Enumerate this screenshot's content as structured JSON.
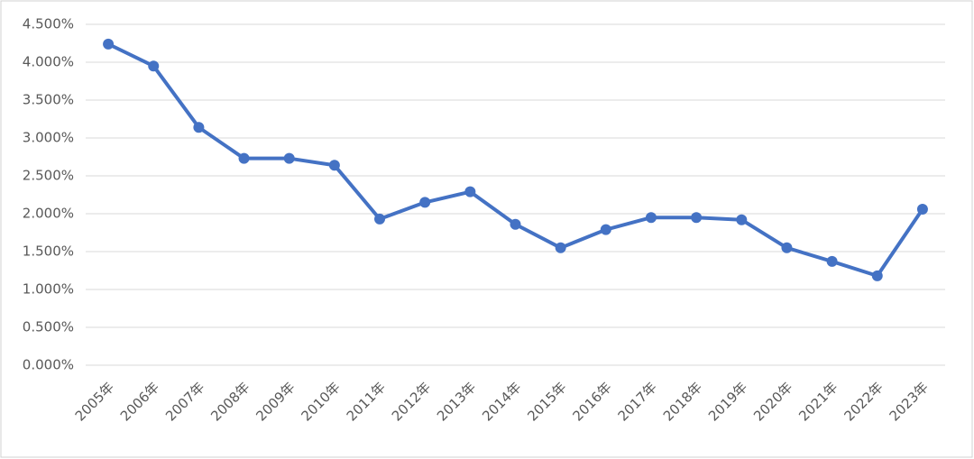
{
  "chart_data": {
    "type": "line",
    "categories": [
      "2005年",
      "2006年",
      "2007年",
      "2008年",
      "2009年",
      "2010年",
      "2011年",
      "2012年",
      "2013年",
      "2014年",
      "2015年",
      "2016年",
      "2017年",
      "2018年",
      "2019年",
      "2020年",
      "2021年",
      "2022年",
      "2023年"
    ],
    "series": [
      {
        "color": "#4472c4",
        "values": [
          4.24,
          3.95,
          3.14,
          2.73,
          2.73,
          2.64,
          1.93,
          2.15,
          2.29,
          1.86,
          1.55,
          1.79,
          1.95,
          1.95,
          1.92,
          1.55,
          1.37,
          1.18,
          2.06
        ]
      }
    ],
    "ylim": [
      0,
      4.5
    ],
    "yticks": [
      {
        "value": 0,
        "label": "0.000%"
      },
      {
        "value": 0.5,
        "label": "0.500%"
      },
      {
        "value": 1,
        "label": "1.000%"
      },
      {
        "value": 1.5,
        "label": "1.500%"
      },
      {
        "value": 2,
        "label": "2.000%"
      },
      {
        "value": 2.5,
        "label": "2.500%"
      },
      {
        "value": 3,
        "label": "3.000%"
      },
      {
        "value": 3.5,
        "label": "3.500%"
      },
      {
        "value": 4,
        "label": "4.000%"
      },
      {
        "value": 4.5,
        "label": "4.500%"
      }
    ],
    "grid": true
  }
}
